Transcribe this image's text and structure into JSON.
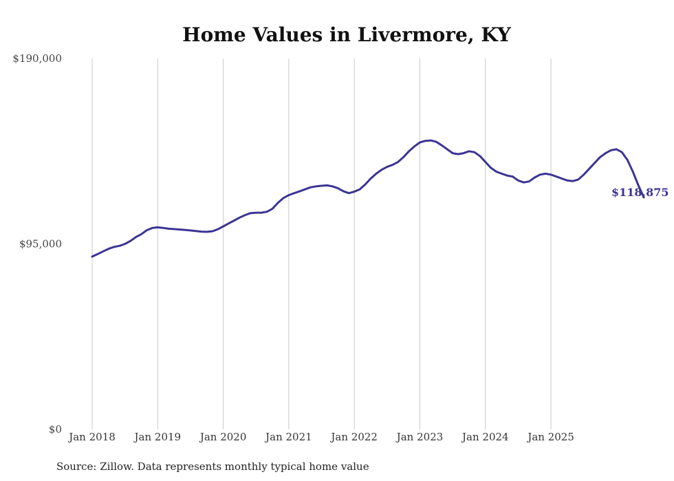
{
  "chart_data": {
    "type": "line",
    "title": "Home Values in Livermore, KY",
    "source": "Source: Zillow. Data represents monthly typical home value",
    "ylim": [
      0,
      190000
    ],
    "y_ticks": [
      {
        "value": 0,
        "label": "$0"
      },
      {
        "value": 95000,
        "label": "$95,000"
      },
      {
        "value": 190000,
        "label": "$190,000"
      }
    ],
    "x_ticks": [
      "Jan 2018",
      "Jan 2019",
      "Jan 2020",
      "Jan 2021",
      "Jan 2022",
      "Jan 2023",
      "Jan 2024",
      "Jan 2025"
    ],
    "grid": "vertical",
    "line_color": "#3b3494",
    "end_label": "$118,875",
    "series": [
      {
        "start": "2018-01",
        "frequency": "monthly",
        "values": [
          88500,
          89800,
          91200,
          92500,
          93500,
          94000,
          95000,
          96500,
          98500,
          100000,
          102000,
          103200,
          103500,
          103200,
          102800,
          102600,
          102400,
          102200,
          101900,
          101600,
          101300,
          101200,
          101500,
          102500,
          104000,
          105500,
          107000,
          108500,
          109800,
          110800,
          111000,
          111000,
          111500,
          113000,
          116000,
          118500,
          120000,
          121000,
          122000,
          123000,
          124000,
          124500,
          124800,
          125000,
          124500,
          123500,
          122000,
          121000,
          121800,
          123000,
          125500,
          128500,
          131000,
          133000,
          134500,
          135500,
          137000,
          139500,
          142500,
          145000,
          147000,
          147800,
          148000,
          147300,
          145500,
          143500,
          141500,
          141000,
          141500,
          142500,
          142000,
          140000,
          137000,
          134000,
          132000,
          131000,
          130000,
          129500,
          127500,
          126500,
          127000,
          129000,
          130500,
          131000,
          130500,
          129500,
          128500,
          127500,
          127200,
          128000,
          130500,
          133500,
          136500,
          139500,
          141500,
          143000,
          143500,
          142000,
          138000,
          132000,
          125000,
          118875
        ]
      }
    ]
  }
}
